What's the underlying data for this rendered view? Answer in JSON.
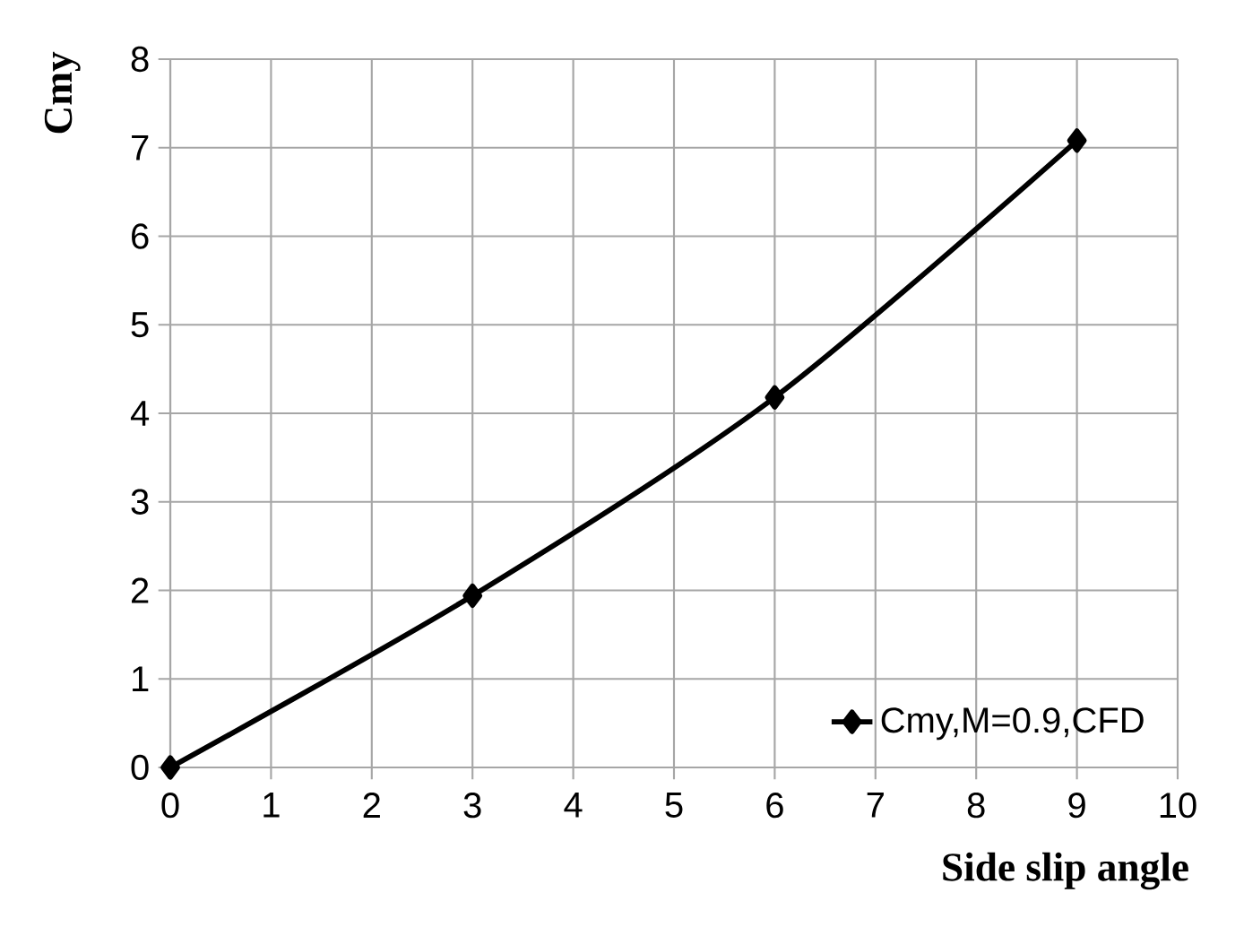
{
  "chart_data": {
    "type": "line",
    "xlabel": "Side slip angle",
    "ylabel": "Cmy",
    "x": [
      0,
      3,
      6,
      9
    ],
    "series": [
      {
        "name": "Cmy,M=0.9,CFD",
        "color": "#000000",
        "values": [
          0,
          1.94,
          4.18,
          7.08
        ]
      }
    ],
    "xlim": [
      0,
      10
    ],
    "ylim": [
      0,
      8
    ],
    "xticks": [
      0,
      1,
      2,
      3,
      4,
      5,
      6,
      7,
      8,
      9,
      10
    ],
    "yticks": [
      0,
      1,
      2,
      3,
      4,
      5,
      6,
      7,
      8
    ],
    "grid": true,
    "legend": "bottom right",
    "marker": "diamond",
    "line_style": "solid"
  }
}
